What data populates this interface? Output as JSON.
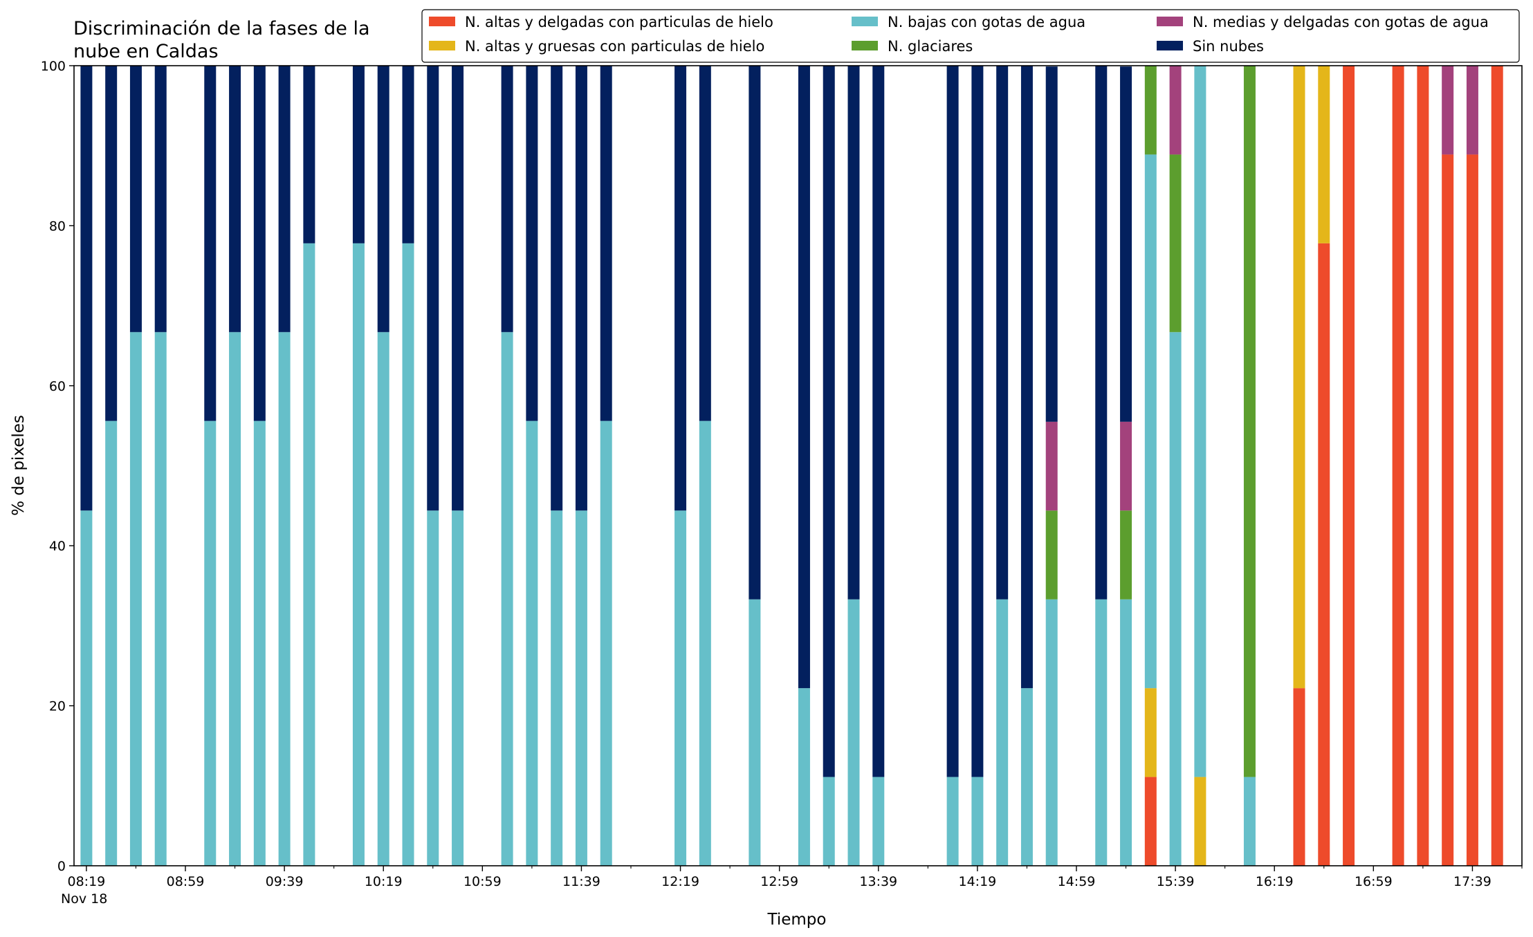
{
  "chart_data": {
    "type": "bar",
    "stacked": true,
    "title_line1": "Discriminación de la fases de la",
    "title_line2": "nube en Caldas",
    "xlabel": "Tiempo",
    "ylabel": "% de pixeles",
    "ylim": [
      0,
      100
    ],
    "yticks": [
      0,
      20,
      40,
      60,
      80,
      100
    ],
    "xlim_minutes": [
      "08:14",
      "17:59"
    ],
    "xtick_labels": [
      "08:19",
      "08:59",
      "09:39",
      "10:19",
      "10:59",
      "11:39",
      "12:19",
      "12:59",
      "13:39",
      "14:19",
      "14:59",
      "15:39",
      "16:19",
      "16:59",
      "17:39"
    ],
    "date_label": "Nov 18",
    "legend_position": "top-right",
    "series": [
      {
        "name": "N. altas y delgadas con particulas de hielo",
        "color": "#ee4b2b"
      },
      {
        "name": "N. altas y gruesas con particulas de hielo",
        "color": "#e4b61a"
      },
      {
        "name": "N. bajas con gotas de agua",
        "color": "#66bfc9"
      },
      {
        "name": "N. glaciares",
        "color": "#5c9e2e"
      },
      {
        "name": "N. medias y delgadas con gotas de agua",
        "color": "#a3427c"
      },
      {
        "name": "Sin nubes",
        "color": "#03205e"
      }
    ],
    "bars": [
      {
        "time": "08:19",
        "values": [
          0,
          0,
          44.4,
          0,
          0,
          55.6
        ]
      },
      {
        "time": "08:29",
        "values": [
          0,
          0,
          55.6,
          0,
          0,
          44.4
        ]
      },
      {
        "time": "08:39",
        "values": [
          0,
          0,
          66.7,
          0,
          0,
          33.3
        ]
      },
      {
        "time": "08:49",
        "values": [
          0,
          0,
          66.7,
          0,
          0,
          33.3
        ]
      },
      {
        "time": "09:09",
        "values": [
          0,
          0,
          55.6,
          0,
          0,
          44.4
        ]
      },
      {
        "time": "09:19",
        "values": [
          0,
          0,
          66.7,
          0,
          0,
          33.3
        ]
      },
      {
        "time": "09:29",
        "values": [
          0,
          0,
          55.6,
          0,
          0,
          44.4
        ]
      },
      {
        "time": "09:39",
        "values": [
          0,
          0,
          66.7,
          0,
          0,
          33.3
        ]
      },
      {
        "time": "09:49",
        "values": [
          0,
          0,
          77.8,
          0,
          0,
          22.2
        ]
      },
      {
        "time": "10:09",
        "values": [
          0,
          0,
          77.8,
          0,
          0,
          22.2
        ]
      },
      {
        "time": "10:19",
        "values": [
          0,
          0,
          66.7,
          0,
          0,
          33.3
        ]
      },
      {
        "time": "10:29",
        "values": [
          0,
          0,
          77.8,
          0,
          0,
          22.2
        ]
      },
      {
        "time": "10:39",
        "values": [
          0,
          0,
          44.4,
          0,
          0,
          55.6
        ]
      },
      {
        "time": "10:49",
        "values": [
          0,
          0,
          44.4,
          0,
          0,
          55.6
        ]
      },
      {
        "time": "11:09",
        "values": [
          0,
          0,
          66.7,
          0,
          0,
          33.3
        ]
      },
      {
        "time": "11:19",
        "values": [
          0,
          0,
          55.6,
          0,
          0,
          44.4
        ]
      },
      {
        "time": "11:29",
        "values": [
          0,
          0,
          44.4,
          0,
          0,
          55.6
        ]
      },
      {
        "time": "11:39",
        "values": [
          0,
          0,
          44.4,
          0,
          0,
          55.6
        ]
      },
      {
        "time": "11:49",
        "values": [
          0,
          0,
          55.6,
          0,
          0,
          44.4
        ]
      },
      {
        "time": "12:19",
        "values": [
          0,
          0,
          44.4,
          0,
          0,
          55.6
        ]
      },
      {
        "time": "12:29",
        "values": [
          0,
          0,
          55.6,
          0,
          0,
          44.4
        ]
      },
      {
        "time": "12:49",
        "values": [
          0,
          0,
          33.3,
          0,
          0,
          66.7
        ]
      },
      {
        "time": "13:09",
        "values": [
          0,
          0,
          22.2,
          0,
          0,
          77.8
        ]
      },
      {
        "time": "13:19",
        "values": [
          0,
          0,
          11.1,
          0,
          0,
          88.9
        ]
      },
      {
        "time": "13:29",
        "values": [
          0,
          0,
          33.3,
          0,
          0,
          66.7
        ]
      },
      {
        "time": "13:39",
        "values": [
          0,
          0,
          11.1,
          0,
          0,
          88.9
        ]
      },
      {
        "time": "14:09",
        "values": [
          0,
          0,
          11.1,
          0,
          0,
          88.9
        ]
      },
      {
        "time": "14:19",
        "values": [
          0,
          0,
          11.1,
          0,
          0,
          88.9
        ]
      },
      {
        "time": "14:29",
        "values": [
          0,
          0,
          33.3,
          0,
          0,
          66.7
        ]
      },
      {
        "time": "14:39",
        "values": [
          0,
          0,
          22.2,
          0,
          0,
          77.8
        ]
      },
      {
        "time": "14:49",
        "values": [
          0,
          0,
          33.3,
          11.1,
          11.1,
          44.4
        ]
      },
      {
        "time": "15:09",
        "values": [
          0,
          0,
          33.3,
          0,
          0,
          66.7
        ]
      },
      {
        "time": "15:19",
        "values": [
          0,
          0,
          33.3,
          11.1,
          11.1,
          44.4
        ]
      },
      {
        "time": "15:29",
        "values": [
          11.1,
          11.1,
          66.7,
          11.1,
          0,
          0
        ]
      },
      {
        "time": "15:39",
        "values": [
          0,
          0,
          66.7,
          22.2,
          11.1,
          0
        ]
      },
      {
        "time": "15:49",
        "values": [
          0,
          11.1,
          88.9,
          0,
          0,
          0
        ]
      },
      {
        "time": "16:09",
        "values": [
          0,
          0,
          11.1,
          88.9,
          0,
          0
        ]
      },
      {
        "time": "16:29",
        "values": [
          22.2,
          77.8,
          0,
          0,
          0,
          0
        ]
      },
      {
        "time": "16:39",
        "values": [
          77.8,
          22.2,
          0,
          0,
          0,
          0
        ]
      },
      {
        "time": "16:49",
        "values": [
          100,
          0,
          0,
          0,
          0,
          0
        ]
      },
      {
        "time": "17:09",
        "values": [
          100,
          0,
          0,
          0,
          0,
          0
        ]
      },
      {
        "time": "17:19",
        "values": [
          100,
          0,
          0,
          0,
          0,
          0
        ]
      },
      {
        "time": "17:29",
        "values": [
          88.9,
          0,
          0,
          0,
          11.1,
          0
        ]
      },
      {
        "time": "17:39",
        "values": [
          88.9,
          0,
          0,
          0,
          11.1,
          0
        ]
      },
      {
        "time": "17:49",
        "values": [
          100,
          0,
          0,
          0,
          0,
          0
        ]
      }
    ]
  }
}
